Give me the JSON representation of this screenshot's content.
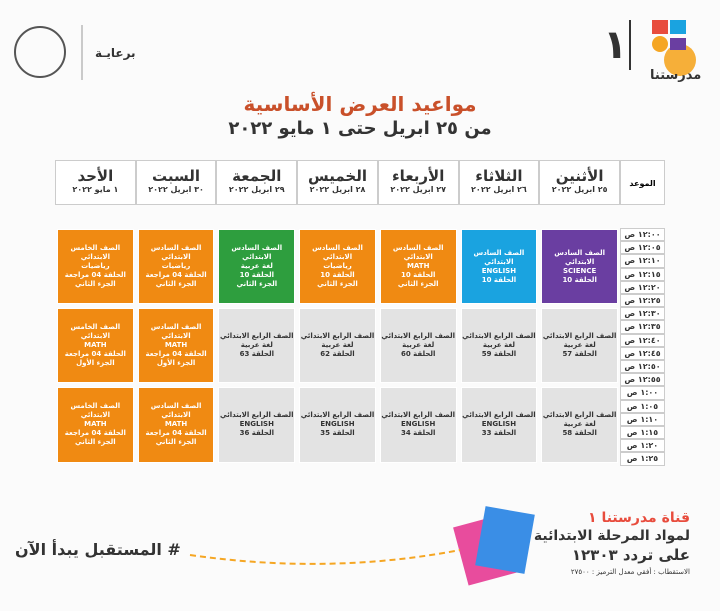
{
  "header": {
    "logo_text": "مدرستنا",
    "logo_number": "١",
    "sponsor": "برعايـة"
  },
  "title": "مواعيد العرض الأساسية",
  "subtitle": "من ٢٥ ابريل حتى ١ مايو ٢٠٢٢",
  "table": {
    "time_header": "الموعد",
    "days": [
      {
        "name": "الأثنين",
        "date": "٢٥ ابريل ٢٠٢٢"
      },
      {
        "name": "الثلاثاء",
        "date": "٢٦ ابريل ٢٠٢٢"
      },
      {
        "name": "الأربعاء",
        "date": "٢٧ ابريل ٢٠٢٢"
      },
      {
        "name": "الخميس",
        "date": "٢٨ ابريل ٢٠٢٢"
      },
      {
        "name": "الجمعة",
        "date": "٢٩ ابريل ٢٠٢٢"
      },
      {
        "name": "السبت",
        "date": "٣٠ ابريل ٢٠٢٢"
      },
      {
        "name": "الأحد",
        "date": "١ مايو ٢٠٢٢"
      }
    ],
    "times": [
      "١٢:٠٠ ص",
      "١٢:٠٥ ص",
      "١٢:١٠ ص",
      "١٢:١٥ ص",
      "١٢:٢٠ ص",
      "١٢:٢٥ ص",
      "١٢:٣٠ ص",
      "١٢:٣٥ ص",
      "١٢:٤٠ ص",
      "١٢:٤٥ ص",
      "١٢:٥٠ ص",
      "١٢:٥٥ ص",
      "١:٠٠ ص",
      "١:٠٥ ص",
      "١:١٠ ص",
      "١:١٥ ص",
      "١:٢٠ ص",
      "١:٢٥ ص"
    ],
    "rows": [
      [
        {
          "color": "#6a3ea1",
          "lines": [
            "الصف السادس الابتدائي",
            "SCIENCE",
            "الحلقة 10"
          ]
        },
        {
          "color": "#1aa3e0",
          "lines": [
            "الصف السادس الابتدائي",
            "ENGLISH",
            "الحلقة 10"
          ]
        },
        {
          "color": "#f08a12",
          "lines": [
            "الصف السادس الابتدائي",
            "MATH",
            "الحلقة 10",
            "الجزء الثاني"
          ]
        },
        {
          "color": "#f08a12",
          "lines": [
            "الصف السادس الابتدائي",
            "رياضيات",
            "الحلقة 10",
            "الجزء الثاني"
          ]
        },
        {
          "color": "#2e9e3e",
          "lines": [
            "الصف السادس الابتدائي",
            "لغة عربية",
            "الحلقة 10",
            "الجزء الثاني"
          ]
        },
        {
          "color": "#f08a12",
          "lines": [
            "الصف السادس الابتدائي",
            "رياضيات",
            "الحلقة 04 مراجعة",
            "الجزء الثاني"
          ]
        },
        {
          "color": "#f08a12",
          "lines": [
            "الصف الخامس الابتدائي",
            "رياضيات",
            "الحلقة 04 مراجعة",
            "الجزء الثاني"
          ]
        }
      ],
      [
        {
          "color": "#e3e3e3",
          "lines": [
            "الصف الرابع الابتدائي",
            "لغة عربية",
            "الحلقة 57"
          ]
        },
        {
          "color": "#e3e3e3",
          "lines": [
            "الصف الرابع الابتدائي",
            "لغة عربية",
            "الحلقة 59"
          ]
        },
        {
          "color": "#e3e3e3",
          "lines": [
            "الصف الرابع الابتدائي",
            "لغة عربية",
            "الحلقة 60"
          ]
        },
        {
          "color": "#e3e3e3",
          "lines": [
            "الصف الرابع الابتدائي",
            "لغة عربية",
            "الحلقة 62"
          ]
        },
        {
          "color": "#e3e3e3",
          "lines": [
            "الصف الرابع الابتدائي",
            "لغة عربية",
            "الحلقة 63"
          ]
        },
        {
          "color": "#f08a12",
          "lines": [
            "الصف السادس الابتدائي",
            "MATH",
            "الحلقة 04 مراجعة",
            "الجزء الأول"
          ]
        },
        {
          "color": "#f08a12",
          "lines": [
            "الصف الخامس الابتدائي",
            "MATH",
            "الحلقة 04 مراجعة",
            "الجزء الأول"
          ]
        }
      ],
      [
        {
          "color": "#e3e3e3",
          "lines": [
            "الصف الرابع الابتدائي",
            "لغة عربية",
            "الحلقة 58"
          ]
        },
        {
          "color": "#e3e3e3",
          "lines": [
            "الصف الرابع الابتدائي",
            "ENGLISH",
            "الحلقة 33"
          ]
        },
        {
          "color": "#e3e3e3",
          "lines": [
            "الصف الرابع الابتدائي",
            "ENGLISH",
            "الحلقة 34"
          ]
        },
        {
          "color": "#e3e3e3",
          "lines": [
            "الصف الرابع الابتدائي",
            "ENGLISH",
            "الحلقة 35"
          ]
        },
        {
          "color": "#e3e3e3",
          "lines": [
            "الصف الرابع الابتدائي",
            "ENGLISH",
            "الحلقة 36"
          ]
        },
        {
          "color": "#f08a12",
          "lines": [
            "الصف السادس الابتدائي",
            "MATH",
            "الحلقة 04 مراجعة",
            "الجزء الثاني"
          ]
        },
        {
          "color": "#f08a12",
          "lines": [
            "الصف الخامس الابتدائي",
            "MATH",
            "الحلقة 04 مراجعة",
            "الجزء الثاني"
          ]
        }
      ]
    ]
  },
  "footer": {
    "hashtag": "# المستقبل يبدأ الآن",
    "channel": "قناة مدرستنا ١",
    "subject": "لمواد المرحلة الابتدائية",
    "frequency": "على تردد ١٢٣٠٣",
    "technical": "الاستقطاب : أفقي معدل الترميز : ٢٧٥٠٠"
  }
}
